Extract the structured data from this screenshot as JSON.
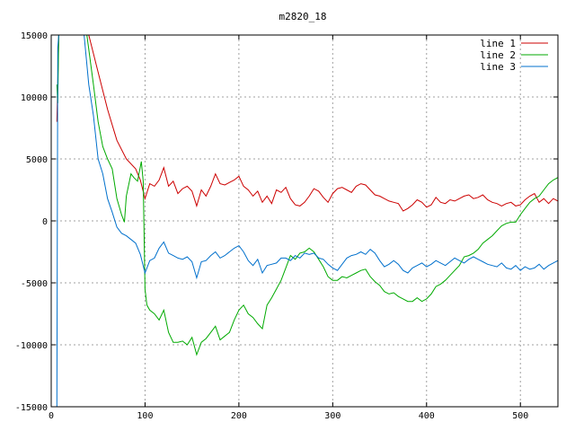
{
  "chart_data": {
    "type": "line",
    "title": "m2820_18",
    "xlabel": "",
    "ylabel": "",
    "xlim": [
      0,
      540
    ],
    "ylim": [
      -15000,
      15000
    ],
    "x_ticks": [
      0,
      100,
      200,
      300,
      400,
      500
    ],
    "y_ticks": [
      -15000,
      -10000,
      -5000,
      0,
      5000,
      10000,
      15000
    ],
    "grid": true,
    "legend_position": "top-right",
    "series": [
      {
        "name": "line 1",
        "color": "#cc0000",
        "points": [
          [
            6,
            8000
          ],
          [
            7,
            11000
          ],
          [
            8,
            15000
          ],
          [
            40,
            15000
          ],
          [
            50,
            12000
          ],
          [
            60,
            9000
          ],
          [
            70,
            6500
          ],
          [
            80,
            5000
          ],
          [
            90,
            4200
          ],
          [
            95,
            3300
          ],
          [
            100,
            1800
          ],
          [
            105,
            3000
          ],
          [
            110,
            2800
          ],
          [
            115,
            3300
          ],
          [
            120,
            4300
          ],
          [
            125,
            2800
          ],
          [
            130,
            3200
          ],
          [
            135,
            2200
          ],
          [
            140,
            2600
          ],
          [
            145,
            2800
          ],
          [
            150,
            2400
          ],
          [
            155,
            1200
          ],
          [
            160,
            2500
          ],
          [
            165,
            2000
          ],
          [
            170,
            2800
          ],
          [
            175,
            3800
          ],
          [
            180,
            3000
          ],
          [
            185,
            2900
          ],
          [
            190,
            3100
          ],
          [
            195,
            3300
          ],
          [
            200,
            3600
          ],
          [
            205,
            2800
          ],
          [
            210,
            2500
          ],
          [
            215,
            2000
          ],
          [
            220,
            2400
          ],
          [
            225,
            1500
          ],
          [
            230,
            2000
          ],
          [
            235,
            1400
          ],
          [
            240,
            2500
          ],
          [
            245,
            2300
          ],
          [
            250,
            2700
          ],
          [
            255,
            1800
          ],
          [
            260,
            1300
          ],
          [
            265,
            1200
          ],
          [
            270,
            1500
          ],
          [
            275,
            2000
          ],
          [
            280,
            2600
          ],
          [
            285,
            2400
          ],
          [
            290,
            1900
          ],
          [
            295,
            1500
          ],
          [
            300,
            2200
          ],
          [
            305,
            2600
          ],
          [
            310,
            2700
          ],
          [
            315,
            2500
          ],
          [
            320,
            2300
          ],
          [
            325,
            2800
          ],
          [
            330,
            3000
          ],
          [
            335,
            2900
          ],
          [
            340,
            2500
          ],
          [
            345,
            2100
          ],
          [
            350,
            2000
          ],
          [
            355,
            1800
          ],
          [
            360,
            1600
          ],
          [
            365,
            1500
          ],
          [
            370,
            1400
          ],
          [
            375,
            800
          ],
          [
            380,
            1000
          ],
          [
            385,
            1300
          ],
          [
            390,
            1700
          ],
          [
            395,
            1500
          ],
          [
            400,
            1100
          ],
          [
            405,
            1300
          ],
          [
            410,
            1900
          ],
          [
            415,
            1500
          ],
          [
            420,
            1400
          ],
          [
            425,
            1700
          ],
          [
            430,
            1600
          ],
          [
            435,
            1800
          ],
          [
            440,
            2000
          ],
          [
            445,
            2100
          ],
          [
            450,
            1800
          ],
          [
            455,
            1900
          ],
          [
            460,
            2100
          ],
          [
            465,
            1700
          ],
          [
            470,
            1500
          ],
          [
            475,
            1400
          ],
          [
            480,
            1200
          ],
          [
            485,
            1400
          ],
          [
            490,
            1500
          ],
          [
            495,
            1200
          ],
          [
            500,
            1300
          ],
          [
            505,
            1700
          ],
          [
            510,
            2000
          ],
          [
            515,
            2200
          ],
          [
            520,
            1500
          ],
          [
            525,
            1800
          ],
          [
            530,
            1400
          ],
          [
            535,
            1800
          ],
          [
            540,
            1600
          ]
        ]
      },
      {
        "name": "line 2",
        "color": "#00aa00",
        "points": [
          [
            6,
            11000
          ],
          [
            7,
            9500
          ],
          [
            8,
            15000
          ],
          [
            38,
            15000
          ],
          [
            45,
            11000
          ],
          [
            50,
            8000
          ],
          [
            55,
            6000
          ],
          [
            60,
            5000
          ],
          [
            65,
            4200
          ],
          [
            70,
            1800
          ],
          [
            75,
            500
          ],
          [
            78,
            -100
          ],
          [
            80,
            2000
          ],
          [
            85,
            3800
          ],
          [
            88,
            3500
          ],
          [
            92,
            3200
          ],
          [
            96,
            4800
          ],
          [
            98,
            3200
          ],
          [
            100,
            -5500
          ],
          [
            102,
            -6800
          ],
          [
            105,
            -7200
          ],
          [
            110,
            -7500
          ],
          [
            115,
            -8000
          ],
          [
            120,
            -7200
          ],
          [
            125,
            -9000
          ],
          [
            130,
            -9800
          ],
          [
            135,
            -9800
          ],
          [
            140,
            -9700
          ],
          [
            145,
            -10000
          ],
          [
            150,
            -9400
          ],
          [
            155,
            -10800
          ],
          [
            160,
            -9800
          ],
          [
            165,
            -9500
          ],
          [
            170,
            -9000
          ],
          [
            175,
            -8500
          ],
          [
            180,
            -9600
          ],
          [
            185,
            -9300
          ],
          [
            190,
            -9000
          ],
          [
            195,
            -8000
          ],
          [
            200,
            -7200
          ],
          [
            205,
            -6800
          ],
          [
            210,
            -7500
          ],
          [
            215,
            -7800
          ],
          [
            220,
            -8300
          ],
          [
            225,
            -8700
          ],
          [
            230,
            -6800
          ],
          [
            235,
            -6200
          ],
          [
            240,
            -5500
          ],
          [
            245,
            -4800
          ],
          [
            250,
            -3800
          ],
          [
            255,
            -2800
          ],
          [
            260,
            -3100
          ],
          [
            265,
            -2600
          ],
          [
            270,
            -2500
          ],
          [
            275,
            -2200
          ],
          [
            280,
            -2500
          ],
          [
            285,
            -3100
          ],
          [
            290,
            -3700
          ],
          [
            295,
            -4500
          ],
          [
            300,
            -4800
          ],
          [
            305,
            -4800
          ],
          [
            310,
            -4500
          ],
          [
            315,
            -4600
          ],
          [
            320,
            -4400
          ],
          [
            325,
            -4200
          ],
          [
            330,
            -4000
          ],
          [
            335,
            -3900
          ],
          [
            340,
            -4500
          ],
          [
            345,
            -4900
          ],
          [
            350,
            -5200
          ],
          [
            355,
            -5700
          ],
          [
            360,
            -5900
          ],
          [
            365,
            -5800
          ],
          [
            370,
            -6100
          ],
          [
            375,
            -6300
          ],
          [
            380,
            -6500
          ],
          [
            385,
            -6500
          ],
          [
            390,
            -6200
          ],
          [
            395,
            -6500
          ],
          [
            400,
            -6300
          ],
          [
            405,
            -5900
          ],
          [
            410,
            -5300
          ],
          [
            415,
            -5100
          ],
          [
            420,
            -4800
          ],
          [
            425,
            -4400
          ],
          [
            430,
            -4000
          ],
          [
            435,
            -3600
          ],
          [
            440,
            -2900
          ],
          [
            445,
            -2800
          ],
          [
            450,
            -2600
          ],
          [
            455,
            -2300
          ],
          [
            460,
            -1800
          ],
          [
            465,
            -1500
          ],
          [
            470,
            -1200
          ],
          [
            475,
            -800
          ],
          [
            480,
            -400
          ],
          [
            485,
            -200
          ],
          [
            490,
            -100
          ],
          [
            495,
            -100
          ],
          [
            500,
            500
          ],
          [
            505,
            1000
          ],
          [
            510,
            1500
          ],
          [
            515,
            1800
          ],
          [
            520,
            2000
          ],
          [
            525,
            2500
          ],
          [
            530,
            3000
          ],
          [
            535,
            3300
          ],
          [
            540,
            3500
          ]
        ]
      },
      {
        "name": "line 3",
        "color": "#0070cc",
        "points": [
          [
            6,
            -15000
          ],
          [
            7,
            14000
          ],
          [
            8,
            15000
          ],
          [
            35,
            15000
          ],
          [
            40,
            11000
          ],
          [
            45,
            8500
          ],
          [
            50,
            5000
          ],
          [
            55,
            3800
          ],
          [
            60,
            1800
          ],
          [
            65,
            700
          ],
          [
            70,
            -500
          ],
          [
            75,
            -1000
          ],
          [
            80,
            -1200
          ],
          [
            85,
            -1500
          ],
          [
            90,
            -1800
          ],
          [
            95,
            -2700
          ],
          [
            100,
            -4200
          ],
          [
            105,
            -3200
          ],
          [
            110,
            -3000
          ],
          [
            115,
            -2200
          ],
          [
            120,
            -1700
          ],
          [
            125,
            -2600
          ],
          [
            130,
            -2800
          ],
          [
            135,
            -3000
          ],
          [
            140,
            -3100
          ],
          [
            145,
            -2900
          ],
          [
            150,
            -3300
          ],
          [
            155,
            -4600
          ],
          [
            160,
            -3300
          ],
          [
            165,
            -3200
          ],
          [
            170,
            -2800
          ],
          [
            175,
            -2500
          ],
          [
            180,
            -3000
          ],
          [
            185,
            -2800
          ],
          [
            190,
            -2500
          ],
          [
            195,
            -2200
          ],
          [
            200,
            -2000
          ],
          [
            205,
            -2500
          ],
          [
            210,
            -3200
          ],
          [
            215,
            -3600
          ],
          [
            220,
            -3100
          ],
          [
            225,
            -4200
          ],
          [
            230,
            -3600
          ],
          [
            235,
            -3500
          ],
          [
            240,
            -3400
          ],
          [
            245,
            -3000
          ],
          [
            250,
            -3000
          ],
          [
            255,
            -3200
          ],
          [
            260,
            -2800
          ],
          [
            265,
            -3000
          ],
          [
            270,
            -2600
          ],
          [
            275,
            -2700
          ],
          [
            280,
            -2600
          ],
          [
            285,
            -3000
          ],
          [
            290,
            -3100
          ],
          [
            295,
            -3500
          ],
          [
            300,
            -3800
          ],
          [
            305,
            -4000
          ],
          [
            310,
            -3500
          ],
          [
            315,
            -3000
          ],
          [
            320,
            -2800
          ],
          [
            325,
            -2700
          ],
          [
            330,
            -2500
          ],
          [
            335,
            -2700
          ],
          [
            340,
            -2300
          ],
          [
            345,
            -2600
          ],
          [
            350,
            -3200
          ],
          [
            355,
            -3700
          ],
          [
            360,
            -3500
          ],
          [
            365,
            -3200
          ],
          [
            370,
            -3500
          ],
          [
            375,
            -4000
          ],
          [
            380,
            -4200
          ],
          [
            385,
            -3800
          ],
          [
            390,
            -3600
          ],
          [
            395,
            -3400
          ],
          [
            400,
            -3700
          ],
          [
            405,
            -3500
          ],
          [
            410,
            -3200
          ],
          [
            415,
            -3400
          ],
          [
            420,
            -3600
          ],
          [
            425,
            -3300
          ],
          [
            430,
            -3000
          ],
          [
            435,
            -3200
          ],
          [
            440,
            -3400
          ],
          [
            445,
            -3100
          ],
          [
            450,
            -2900
          ],
          [
            455,
            -3100
          ],
          [
            460,
            -3300
          ],
          [
            465,
            -3500
          ],
          [
            470,
            -3600
          ],
          [
            475,
            -3700
          ],
          [
            480,
            -3400
          ],
          [
            485,
            -3800
          ],
          [
            490,
            -3900
          ],
          [
            495,
            -3600
          ],
          [
            500,
            -4000
          ],
          [
            505,
            -3700
          ],
          [
            510,
            -3900
          ],
          [
            515,
            -3800
          ],
          [
            520,
            -3500
          ],
          [
            525,
            -3900
          ],
          [
            530,
            -3600
          ],
          [
            535,
            -3400
          ],
          [
            540,
            -3200
          ]
        ]
      }
    ]
  }
}
